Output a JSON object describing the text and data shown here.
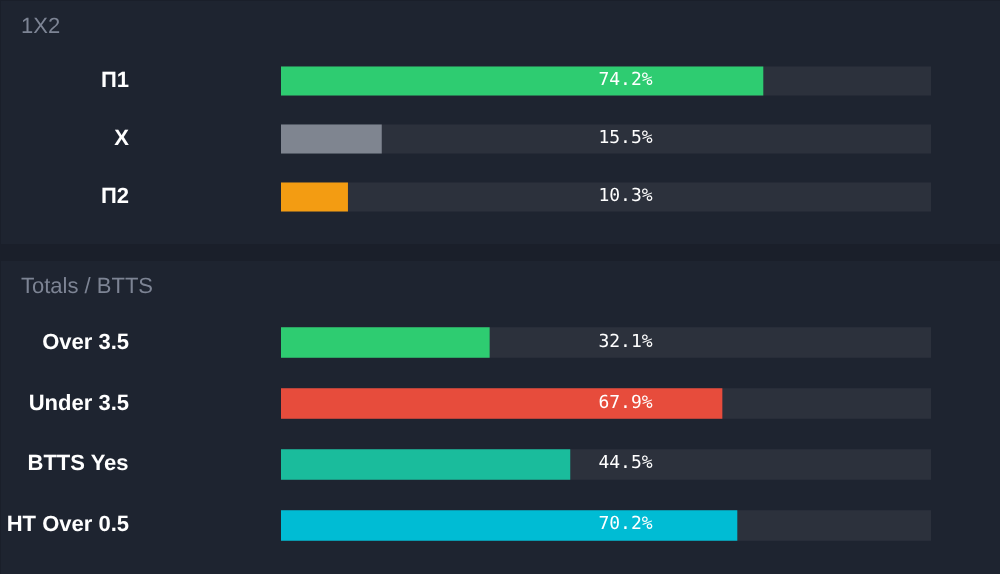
{
  "chart_data": [
    {
      "type": "bar",
      "title": "1X2",
      "orientation": "horizontal",
      "categories": [
        "П1",
        "X",
        "П2"
      ],
      "values": [
        74.2,
        15.5,
        10.3
      ],
      "colors": [
        "#2ecc71",
        "#7f8590",
        "#f39c12"
      ],
      "value_labels": [
        "74.2%",
        "15.5%",
        "10.3%"
      ],
      "xlim": [
        0,
        100
      ],
      "tick_labels": "y"
    },
    {
      "type": "bar",
      "title": "Totals / BTTS",
      "orientation": "horizontal",
      "categories": [
        "Over 3.5",
        "Under 3.5",
        "BTTS Yes",
        "HT Over 0.5"
      ],
      "values": [
        32.1,
        67.9,
        44.5,
        70.2
      ],
      "colors": [
        "#2ecc71",
        "#e74c3c",
        "#1abc9c",
        "#00bcd4"
      ],
      "value_labels": [
        "32.1%",
        "67.9%",
        "44.5%",
        "70.2%"
      ],
      "xlim": [
        0,
        100
      ],
      "tick_labels": "y"
    }
  ]
}
